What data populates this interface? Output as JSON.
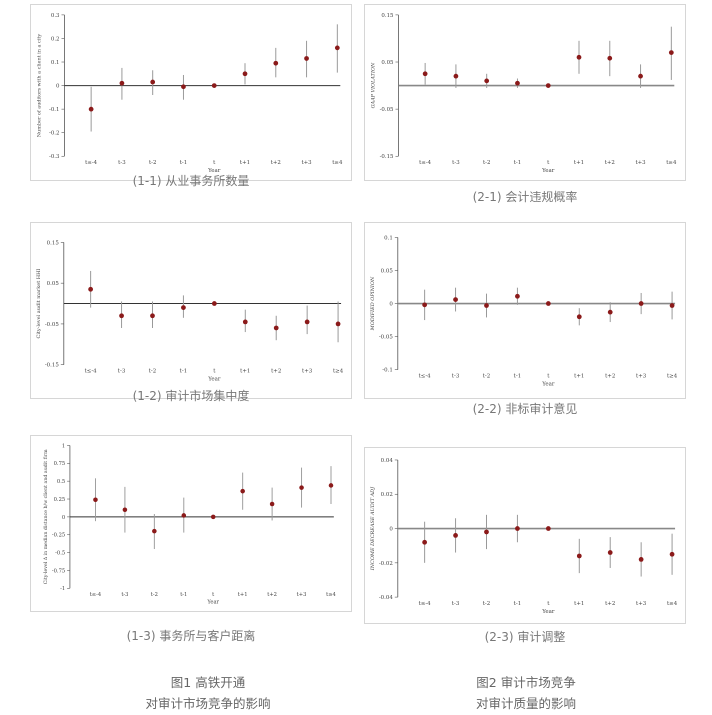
{
  "figures": [
    {
      "line1": "图1 高铁开通",
      "line2": "对审计市场竞争的影响"
    },
    {
      "line1": "图2 审计市场竞争",
      "line2": "对审计质量的影响"
    }
  ],
  "chart_data": [
    {
      "type": "scatter",
      "caption": "(1-1) 从业事务所数量",
      "ylabel": "Number of auditors with a client in a city",
      "xlabel": "Year",
      "categories": [
        "t≤-4",
        "t-3",
        "t-2",
        "t-1",
        "t",
        "t+1",
        "t+2",
        "t+3",
        "t≥4"
      ],
      "ylim": [
        -0.3,
        0.3
      ],
      "yticks": [
        -0.3,
        -0.2,
        -0.1,
        0,
        0.1,
        0.2,
        0.3
      ],
      "ytick_labels": [
        "-0.3",
        "-0.2",
        "-0.1",
        "0",
        "0.1",
        "0.2",
        "0.3"
      ],
      "values": [
        -0.1,
        0.01,
        0.015,
        -0.005,
        0.0,
        0.05,
        0.095,
        0.115,
        0.16
      ],
      "ci_low": [
        -0.195,
        -0.06,
        -0.04,
        -0.06,
        0.0,
        0.005,
        0.035,
        0.035,
        0.055
      ],
      "ci_high": [
        -0.005,
        0.075,
        0.065,
        0.045,
        0.0,
        0.095,
        0.16,
        0.19,
        0.26
      ],
      "yzero_line": 0
    },
    {
      "type": "scatter",
      "caption": "(1-2) 审计市场集中度",
      "ylabel": "City-level audit market HHI",
      "xlabel": "Year",
      "categories": [
        "t≤-4",
        "t-3",
        "t-2",
        "t-1",
        "t",
        "t+1",
        "t+2",
        "t+3",
        "t≥4"
      ],
      "ylim": [
        -0.15,
        0.15
      ],
      "yticks": [
        -0.15,
        -0.05,
        0.05,
        0.15
      ],
      "ytick_labels": [
        "-0.15",
        "-0.05",
        "0.05",
        "0.15"
      ],
      "values": [
        0.035,
        -0.03,
        -0.03,
        -0.01,
        0.0,
        -0.045,
        -0.06,
        -0.045,
        -0.05
      ],
      "ci_low": [
        -0.01,
        -0.06,
        -0.06,
        -0.035,
        0.0,
        -0.07,
        -0.09,
        -0.075,
        -0.095
      ],
      "ci_high": [
        0.08,
        0.005,
        0.005,
        0.02,
        0.0,
        -0.015,
        -0.03,
        -0.005,
        0.005
      ],
      "yzero_line": 0
    },
    {
      "type": "scatter",
      "caption": "(1-3) 事务所与客户距离",
      "ylabel": "City-level Δ in median distance b/w client and audit firm",
      "xlabel": "Year",
      "categories": [
        "t≤-4",
        "t-3",
        "t-2",
        "t-1",
        "t",
        "t+1",
        "t+2",
        "t+3",
        "t≥4"
      ],
      "ylim": [
        -1,
        1
      ],
      "yticks": [
        -1,
        -0.75,
        -0.5,
        -0.25,
        0,
        0.25,
        0.5,
        0.75,
        1
      ],
      "ytick_labels": [
        "-1",
        "-0.75",
        "-0.5",
        "-0.25",
        "0",
        "0.25",
        "0.5",
        "0.75",
        "1"
      ],
      "values": [
        0.24,
        0.1,
        -0.2,
        0.02,
        0.0,
        0.36,
        0.18,
        0.41,
        0.44
      ],
      "ci_low": [
        -0.06,
        -0.22,
        -0.45,
        -0.22,
        0.0,
        0.1,
        -0.05,
        0.13,
        0.18
      ],
      "ci_high": [
        0.54,
        0.42,
        0.04,
        0.27,
        0.0,
        0.62,
        0.41,
        0.69,
        0.71
      ],
      "yzero_line": 0
    },
    {
      "type": "scatter",
      "caption": "(2-1) 会计违规概率",
      "ylabel": "GAAP VIOLATION",
      "xlabel": "Year",
      "categories": [
        "t≤-4",
        "t-3",
        "t-2",
        "t-1",
        "t",
        "t+1",
        "t+2",
        "t+3",
        "t≥4"
      ],
      "ylim": [
        -0.15,
        0.15
      ],
      "yticks": [
        -0.15,
        -0.05,
        0.05,
        0.15
      ],
      "ytick_labels": [
        "-0.15",
        "-0.05",
        "0.05",
        "0.15"
      ],
      "values": [
        0.025,
        0.02,
        0.01,
        0.005,
        0.0,
        0.06,
        0.058,
        0.02,
        0.07
      ],
      "ci_low": [
        0.002,
        -0.005,
        -0.005,
        -0.005,
        0.0,
        0.025,
        0.02,
        -0.005,
        0.012
      ],
      "ci_high": [
        0.048,
        0.045,
        0.025,
        0.015,
        0.0,
        0.095,
        0.095,
        0.045,
        0.125
      ],
      "yzero_line": 0
    },
    {
      "type": "scatter",
      "caption": "(2-2) 非标审计意见",
      "ylabel": "MODIFIED OPINION",
      "xlabel": "Year",
      "categories": [
        "t≤-4",
        "t-3",
        "t-2",
        "t-1",
        "t",
        "t+1",
        "t+2",
        "t+3",
        "t≥4"
      ],
      "ylim": [
        -0.1,
        0.1
      ],
      "yticks": [
        -0.1,
        -0.05,
        0,
        0.05,
        0.1
      ],
      "ytick_labels": [
        "-0.1",
        "-0.05",
        "0",
        "0.05",
        "0.1"
      ],
      "values": [
        -0.002,
        0.006,
        -0.003,
        0.011,
        0.0,
        -0.02,
        -0.013,
        0.0,
        -0.003
      ],
      "ci_low": [
        -0.025,
        -0.012,
        -0.021,
        -0.002,
        0.0,
        -0.033,
        -0.028,
        -0.016,
        -0.024
      ],
      "ci_high": [
        0.021,
        0.024,
        0.015,
        0.024,
        0.0,
        -0.007,
        0.002,
        0.016,
        0.018
      ],
      "yzero_line": 0
    },
    {
      "type": "scatter",
      "caption": "(2-3) 审计调整",
      "ylabel": "INCOME DECREASE AUDIT ADJ",
      "xlabel": "Year",
      "categories": [
        "t≤-4",
        "t-3",
        "t-2",
        "t-1",
        "t",
        "t+1",
        "t+2",
        "t+3",
        "t≥4"
      ],
      "ylim": [
        -0.04,
        0.04
      ],
      "yticks": [
        -0.04,
        -0.02,
        0,
        0.02,
        0.04
      ],
      "ytick_labels": [
        "-0.04",
        "-0.02",
        "0",
        "0.02",
        "0.04"
      ],
      "values": [
        -0.008,
        -0.004,
        -0.002,
        0.0,
        0.0,
        -0.016,
        -0.014,
        -0.018,
        -0.015
      ],
      "ci_low": [
        -0.02,
        -0.014,
        -0.012,
        -0.008,
        0.0,
        -0.026,
        -0.023,
        -0.028,
        -0.027
      ],
      "ci_high": [
        0.004,
        0.006,
        0.008,
        0.008,
        0.0,
        -0.006,
        -0.005,
        -0.008,
        -0.003
      ],
      "yzero_line": 0
    }
  ]
}
